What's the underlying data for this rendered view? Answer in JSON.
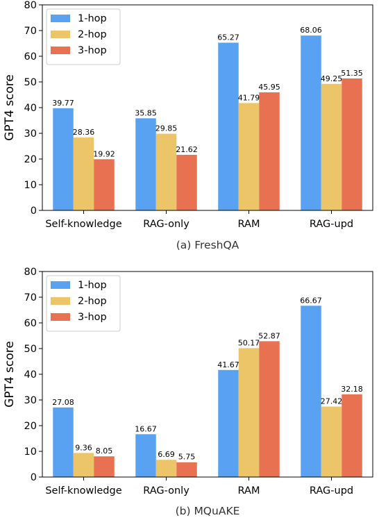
{
  "colors": {
    "1-hop": "#59a2f2",
    "2-hop": "#ecc569",
    "3-hop": "#e87152",
    "axis": "#000000",
    "legend_border": "#cccccc"
  },
  "chart_data": [
    {
      "type": "bar",
      "caption": "(a) FreshQA",
      "ylabel": "GPT4 score",
      "ylim": [
        0,
        80
      ],
      "yticks": [
        0,
        10,
        20,
        30,
        40,
        50,
        60,
        70,
        80
      ],
      "categories": [
        "Self-knowledge",
        "RAG-only",
        "RAM",
        "RAG-upd"
      ],
      "series": [
        {
          "name": "1-hop",
          "values": [
            39.77,
            35.85,
            65.27,
            68.06
          ],
          "labels": [
            "39.77",
            "35.85",
            "65.27",
            "68.06"
          ]
        },
        {
          "name": "2-hop",
          "values": [
            28.36,
            29.85,
            41.79,
            49.25
          ],
          "labels": [
            "28.36",
            "29.85",
            "41.79",
            "49.25"
          ]
        },
        {
          "name": "3-hop",
          "values": [
            19.92,
            21.62,
            45.95,
            51.35
          ],
          "labels": [
            "19.92",
            "21.62",
            "45.95",
            "51.35"
          ]
        }
      ],
      "legend": "top-left",
      "grid": false
    },
    {
      "type": "bar",
      "caption": "(b) MQuAKE",
      "ylabel": "GPT4 score",
      "ylim": [
        0,
        80
      ],
      "yticks": [
        0,
        10,
        20,
        30,
        40,
        50,
        60,
        70,
        80
      ],
      "categories": [
        "Self-knowledge",
        "RAG-only",
        "RAM",
        "RAG-upd"
      ],
      "series": [
        {
          "name": "1-hop",
          "values": [
            27.08,
            16.67,
            41.67,
            66.67
          ],
          "labels": [
            "27.08",
            "16.67",
            "41.67",
            "66.67"
          ]
        },
        {
          "name": "2-hop",
          "values": [
            9.36,
            6.69,
            50.17,
            27.42
          ],
          "labels": [
            "9.36",
            "6.69",
            "50.17",
            "27.42"
          ]
        },
        {
          "name": "3-hop",
          "values": [
            8.05,
            5.75,
            52.87,
            32.18
          ],
          "labels": [
            "8.05",
            "5.75",
            "52.87",
            "32.18"
          ]
        }
      ],
      "legend": "top-left",
      "grid": false
    }
  ]
}
